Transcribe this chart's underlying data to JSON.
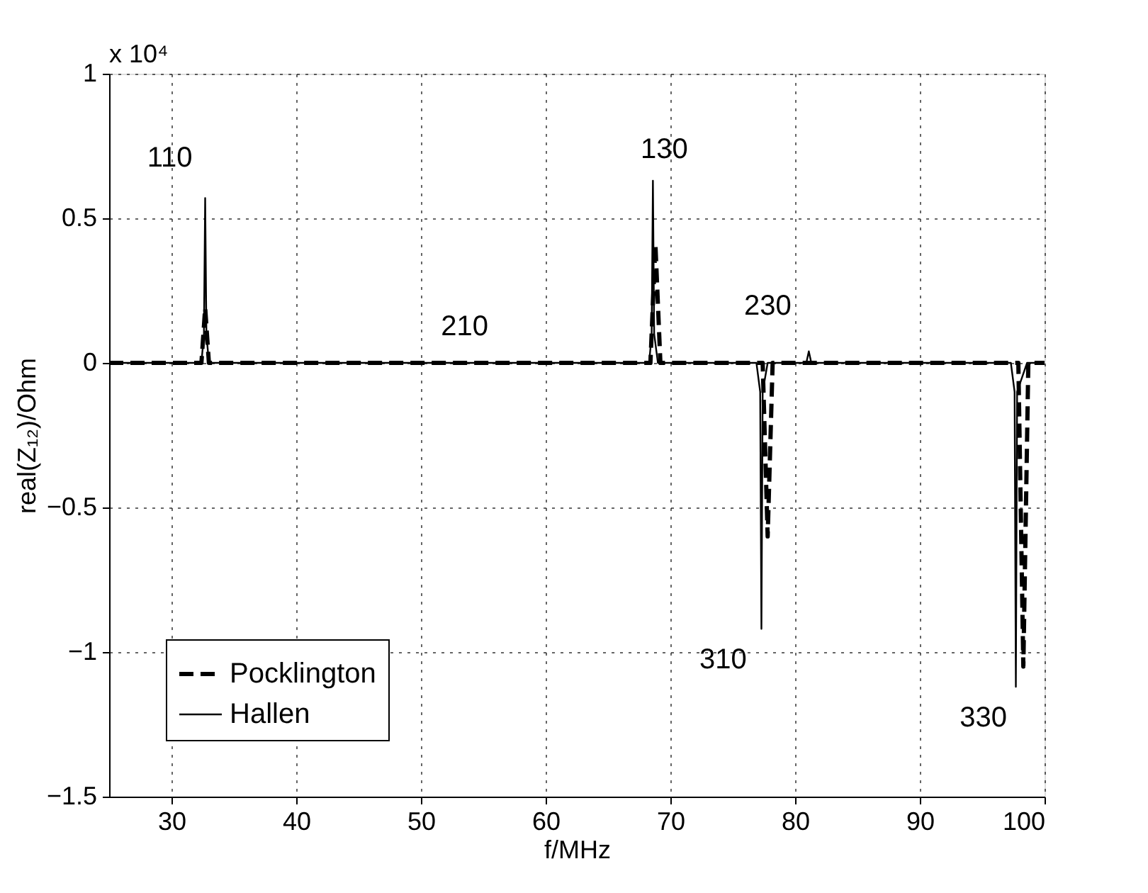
{
  "chart_data": {
    "type": "line",
    "xlabel": "f/MHz",
    "ylabel": "real(Z₁₂)/Ohm",
    "xlim": [
      25,
      100
    ],
    "xticks": [
      30,
      40,
      50,
      60,
      70,
      80,
      90,
      100
    ],
    "ylim": [
      -1.5,
      1
    ],
    "yticks": [
      -1.5,
      {
        "value": -1,
        "label": "−1"
      },
      -0.5,
      {
        "value": 0,
        "label": "0"
      },
      0.5,
      {
        "value": 1,
        "label": "1"
      }
    ],
    "grid": true,
    "legend": "bottom left",
    "series": [
      {
        "name": "Pocklington",
        "color": "#000000",
        "line_style": "dashed",
        "x": [
          25,
          32.4,
          32.7,
          33.0,
          68.4,
          68.8,
          69.2,
          77.4,
          77.8,
          78.2,
          97.9,
          98.3,
          98.7,
          100
        ],
        "values": [
          0,
          0,
          0.19,
          0,
          0,
          0.41,
          0,
          0,
          -0.6,
          0,
          0,
          -1.05,
          0,
          0
        ]
      },
      {
        "name": "Hallen",
        "color": "#000000",
        "line_style": "solid",
        "x": [
          25,
          32.4,
          32.6,
          32.7,
          32.8,
          33.0,
          68.3,
          68.5,
          68.6,
          68.7,
          69.0,
          76.9,
          77.2,
          77.3,
          77.4,
          77.8,
          80.9,
          81.1,
          81.3,
          97.3,
          97.6,
          97.7,
          97.8,
          98.2,
          98.6,
          100
        ],
        "values": [
          0,
          0,
          0.1,
          0.57,
          0.1,
          0,
          0,
          0.1,
          0.63,
          0.1,
          0,
          0,
          -0.1,
          -0.92,
          -0.1,
          0,
          0,
          0.04,
          0,
          0,
          -0.1,
          -1.12,
          -0.1,
          -0.05,
          0,
          0
        ]
      }
    ],
    "annotations": [
      "x 10⁴",
      {
        "text": "110",
        "x": 32.7,
        "y": 0.57
      },
      {
        "text": "130",
        "x": 68.6,
        "y": 0.63
      },
      "210",
      {
        "text": "230",
        "x": 81.1,
        "y": 0.04
      },
      {
        "text": "310",
        "x": 77.3,
        "y": -0.92
      },
      {
        "text": "330",
        "x": 97.7,
        "y": -1.12
      }
    ]
  }
}
